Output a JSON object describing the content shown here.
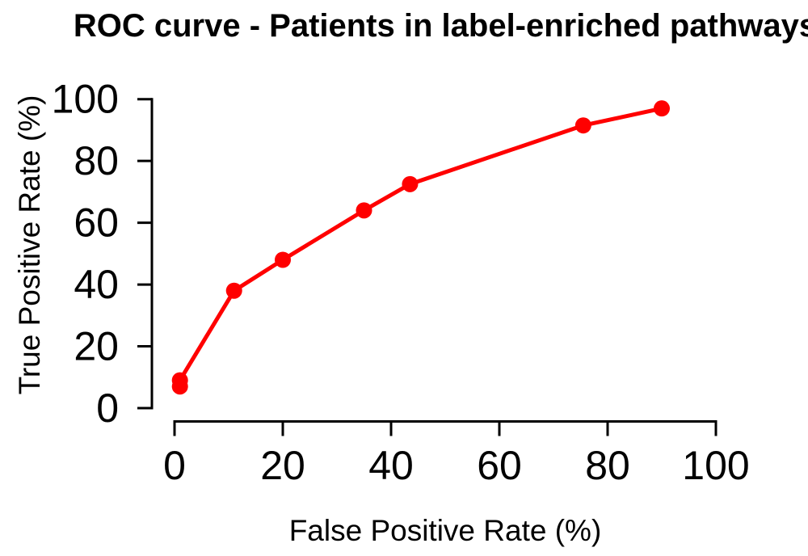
{
  "title": "ROC curve - Patients in label-enriched pathways",
  "chart_data": {
    "type": "line",
    "title": "ROC curve - Patients in label-enriched pathways",
    "xlabel": "False Positive Rate (%)",
    "ylabel": "True Positive Rate (%)",
    "xlim": [
      0,
      100
    ],
    "ylim": [
      0,
      100
    ],
    "x_ticks": [
      0,
      20,
      40,
      60,
      80,
      100
    ],
    "y_ticks": [
      0,
      20,
      40,
      60,
      80,
      100
    ],
    "grid": false,
    "legend": false,
    "series": [
      {
        "name": "ROC curve",
        "color": "#ff0000",
        "marker": "circle",
        "x": [
          1,
          1,
          11,
          20,
          35,
          43.5,
          75.5,
          90
        ],
        "y": [
          7,
          9,
          38,
          48,
          64,
          72.5,
          91.5,
          97
        ]
      }
    ]
  },
  "colors": {
    "curve": "#ff0000",
    "axis": "#000000",
    "text": "#000000",
    "background": "#ffffff"
  }
}
